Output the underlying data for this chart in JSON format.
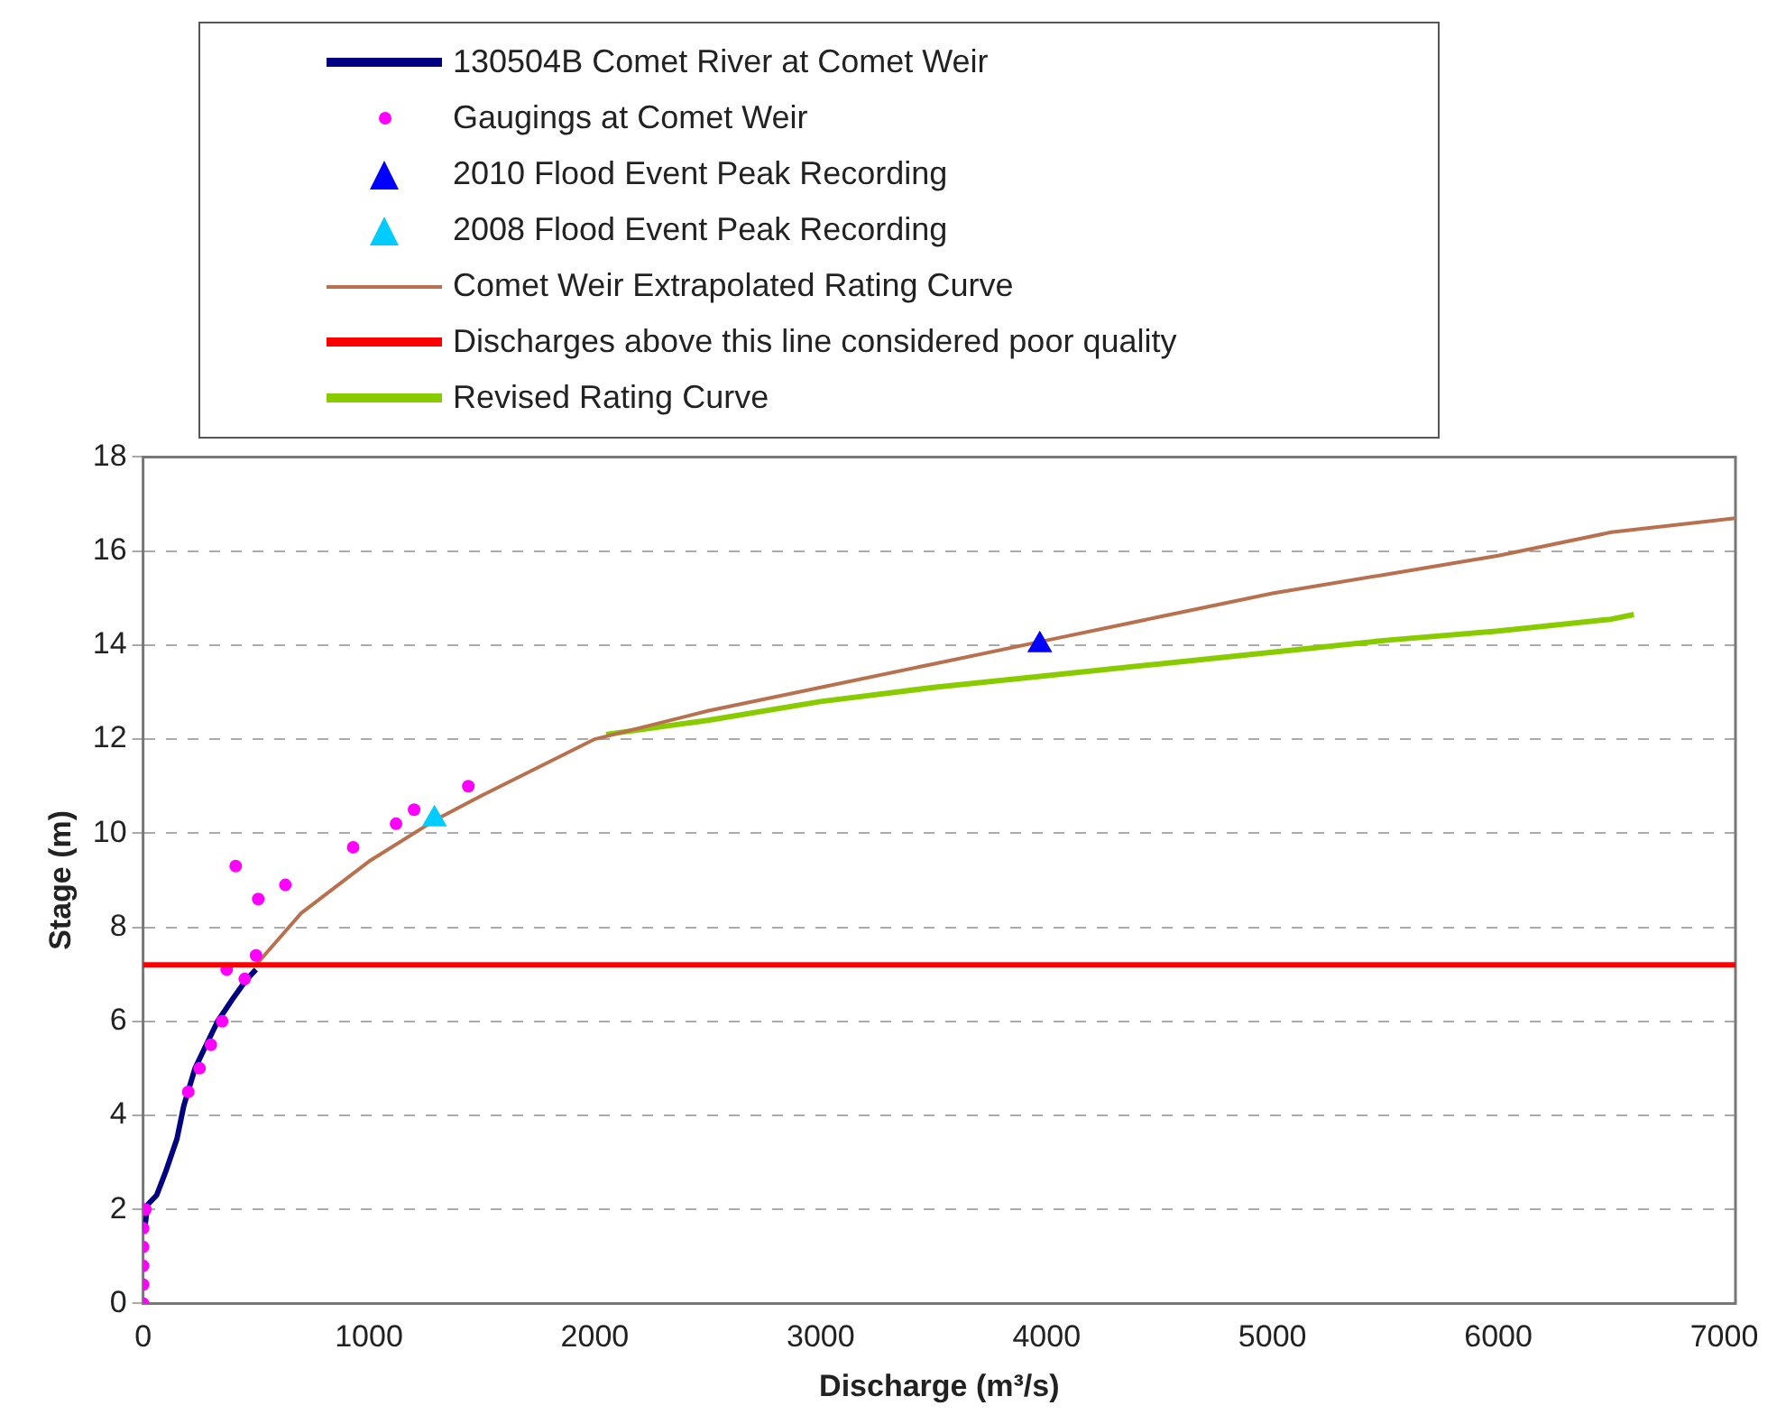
{
  "chart_data": {
    "type": "line",
    "xlabel": "Discharge (m³/s)",
    "ylabel": "Stage (m)",
    "xlim": [
      0,
      7050
    ],
    "xticks": [
      0,
      1000,
      2000,
      3000,
      4000,
      5000,
      6000,
      7000
    ],
    "ylim": [
      0,
      18
    ],
    "yticks": [
      0,
      2,
      4,
      6,
      8,
      10,
      12,
      14,
      16,
      18
    ],
    "grid": "y",
    "legend": "top",
    "ref_lines": [
      {
        "axis": "y",
        "value": 7.2,
        "label": "Discharges above this line considered poor quality",
        "color": "#ff0000"
      }
    ],
    "series": [
      {
        "name": "130504B Comet River at Comet Weir",
        "type": "line",
        "marker": "none",
        "color": "#000080",
        "x": [
          5,
          20,
          60,
          100,
          150,
          180,
          230,
          280,
          330,
          400,
          460,
          500
        ],
        "values": [
          1.5,
          2.1,
          2.3,
          2.8,
          3.5,
          4.2,
          5.0,
          5.5,
          6.0,
          6.5,
          6.9,
          7.1
        ]
      },
      {
        "name": "Gaugings at Comet Weir",
        "type": "scatter",
        "marker": "circle",
        "color": "#ff00ff",
        "x": [
          0,
          0,
          0,
          0,
          0,
          10,
          200,
          250,
          300,
          350,
          370,
          450,
          500,
          410,
          510,
          630,
          930,
          1120,
          1200,
          1440
        ],
        "values": [
          0,
          0.4,
          0.8,
          1.2,
          1.6,
          2.0,
          4.5,
          5.0,
          5.5,
          6.0,
          7.1,
          6.9,
          7.4,
          9.3,
          8.6,
          8.9,
          9.7,
          10.2,
          10.5,
          11.0
        ]
      },
      {
        "name": "2010 Flood Event Peak Recording",
        "type": "scatter",
        "marker": "triangle",
        "color": "#0000ff",
        "x": [
          3970
        ],
        "values": [
          14.0
        ]
      },
      {
        "name": "2008 Flood Event Peak Recording",
        "type": "scatter",
        "marker": "triangle",
        "color": "#00ccff",
        "x": [
          1290
        ],
        "values": [
          10.3
        ]
      },
      {
        "name": "Comet Weir Extrapolated Rating Curve",
        "type": "line",
        "marker": "none",
        "color": "#b8704f",
        "x": [
          500,
          700,
          1000,
          1300,
          1500,
          2000,
          2500,
          3000,
          3500,
          4000,
          4500,
          5000,
          5500,
          6000,
          6500,
          7050
        ],
        "values": [
          7.2,
          8.3,
          9.4,
          10.3,
          10.8,
          12.0,
          12.6,
          13.1,
          13.6,
          14.1,
          14.6,
          15.1,
          15.5,
          15.9,
          16.4,
          16.7
        ]
      },
      {
        "name": "Revised Rating Curve",
        "type": "line",
        "marker": "none",
        "color": "#88cc00",
        "x": [
          2050,
          2500,
          3000,
          3500,
          4000,
          4500,
          5000,
          5500,
          6000,
          6500,
          6600
        ],
        "values": [
          12.1,
          12.4,
          12.8,
          13.1,
          13.35,
          13.6,
          13.85,
          14.1,
          14.3,
          14.55,
          14.65
        ]
      }
    ]
  }
}
